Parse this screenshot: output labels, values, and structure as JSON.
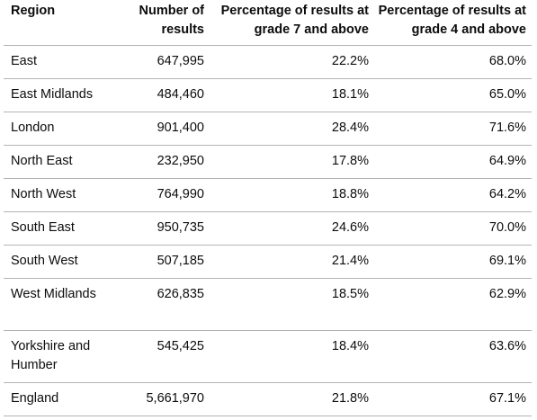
{
  "table": {
    "headers": [
      "Region",
      "Number of results",
      "Percentage of results at grade 7 and above",
      "Percentage of results at grade 4 and above"
    ],
    "rows": [
      [
        "East",
        "647,995",
        "22.2%",
        "68.0%"
      ],
      [
        "East Midlands",
        "484,460",
        "18.1%",
        "65.0%"
      ],
      [
        "London",
        "901,400",
        "28.4%",
        "71.6%"
      ],
      [
        "North East",
        "232,950",
        "17.8%",
        "64.9%"
      ],
      [
        "North West",
        "764,990",
        "18.8%",
        "64.2%"
      ],
      [
        "South East",
        "950,735",
        "24.6%",
        "70.0%"
      ],
      [
        "South West",
        "507,185",
        "21.4%",
        "69.1%"
      ],
      [
        "West Midlands",
        "626,835",
        "18.5%",
        "62.9%"
      ],
      [
        "Yorkshire and Humber",
        "545,425",
        "18.4%",
        "63.6%"
      ],
      [
        "England",
        "5,661,970",
        "21.8%",
        "67.1%"
      ]
    ]
  },
  "colors": {
    "text": "#0b0c0c",
    "border": "#b1b4b6",
    "background": "#ffffff"
  }
}
